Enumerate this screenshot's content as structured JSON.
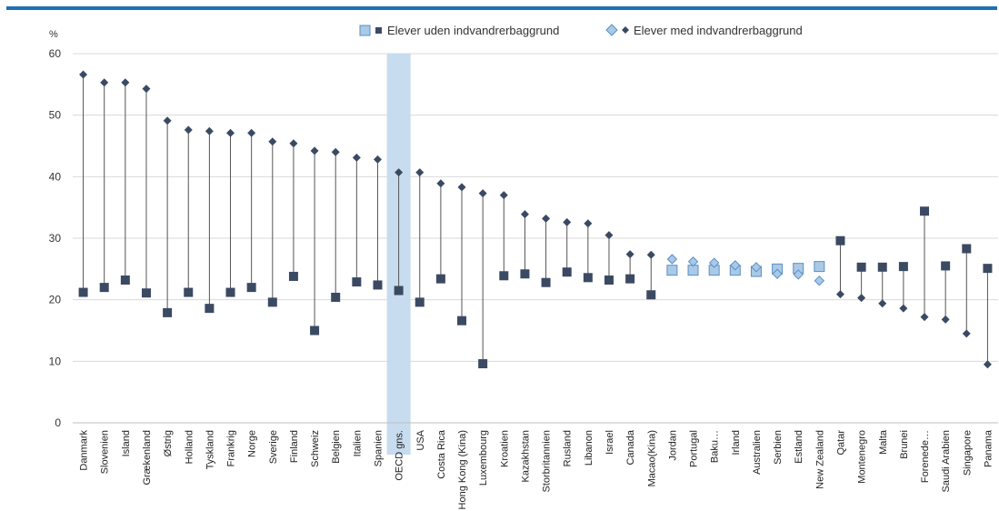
{
  "chart_data": {
    "type": "scatter",
    "ylabel": "%",
    "ylim": [
      0,
      60
    ],
    "yticks": [
      0,
      10,
      20,
      30,
      40,
      50,
      60
    ],
    "grid": true,
    "legend_position": "top-center",
    "highlight_category": "OECD gns.",
    "colors": {
      "dark_marker": "#3b4a63",
      "light_marker_fill": "#a9c9e6",
      "light_marker_stroke": "#5b8fc4",
      "highlight_band": "#c7dcee",
      "connector": "#555555",
      "grid": "#d9d9d9",
      "top_rule": "#1f6fb5"
    },
    "light_categories": [
      "Jordan",
      "Portugal",
      "Baku…",
      "Irland",
      "Australien",
      "Serbien",
      "Estland",
      "New Zealand"
    ],
    "categories": [
      "Danmark",
      "Slovenien",
      "Island",
      "Grækenland",
      "Østrig",
      "Holland",
      "Tyskland",
      "Frankrig",
      "Norge",
      "Sverige",
      "Finland",
      "Schweiz",
      "Belgien",
      "Italien",
      "Spanien",
      "OECD gns.",
      "USA",
      "Costa Rica",
      "Hong Kong (Kina)",
      "Luxembourg",
      "Kroatien",
      "Kazakhstan",
      "Storbritannien",
      "Rusland",
      "Libanon",
      "Israel",
      "Canada",
      "Macao(Kina)",
      "Jordan",
      "Portugal",
      "Baku…",
      "Irland",
      "Australien",
      "Serbien",
      "Estland",
      "New Zealand",
      "Qatar",
      "Montenegro",
      "Malta",
      "Brunei",
      "Forenede…",
      "Saudi Arabien",
      "Singapore",
      "Panama"
    ],
    "series": [
      {
        "name": "Elever uden indvandrerbaggrund",
        "marker": "square",
        "values": [
          21.2,
          22.0,
          23.2,
          21.1,
          17.9,
          21.2,
          18.6,
          21.2,
          22.0,
          19.6,
          23.8,
          15.0,
          20.4,
          22.9,
          22.4,
          21.5,
          19.6,
          23.4,
          16.6,
          9.6,
          23.9,
          24.2,
          22.8,
          24.5,
          23.6,
          23.2,
          23.4,
          20.8,
          24.8,
          24.8,
          24.8,
          24.8,
          24.6,
          25.0,
          25.1,
          25.4,
          29.6,
          25.3,
          25.3,
          25.4,
          34.4,
          25.5,
          28.3,
          25.1
        ]
      },
      {
        "name": "Elever med indvandrerbaggrund",
        "marker": "diamond",
        "values": [
          56.6,
          55.3,
          55.3,
          54.3,
          49.1,
          47.6,
          47.4,
          47.1,
          47.1,
          45.7,
          45.4,
          44.2,
          44.0,
          43.1,
          42.8,
          40.7,
          40.7,
          38.9,
          38.3,
          37.3,
          37.0,
          33.9,
          33.2,
          32.6,
          32.4,
          30.5,
          27.4,
          27.3,
          26.6,
          26.2,
          26.0,
          25.6,
          25.3,
          24.2,
          24.1,
          23.1,
          20.9,
          20.3,
          19.4,
          18.6,
          17.2,
          16.8,
          14.5,
          9.5
        ]
      }
    ]
  }
}
